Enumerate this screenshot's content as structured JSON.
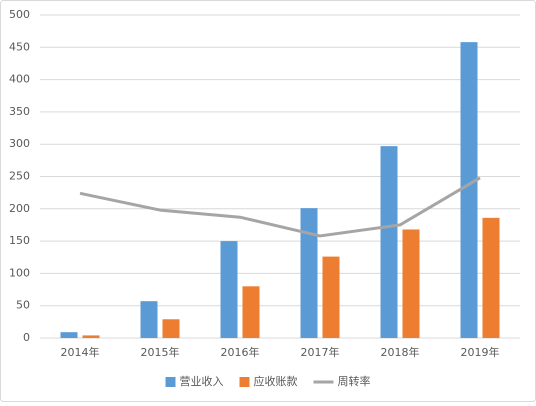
{
  "chart_data": {
    "type": "bar",
    "categories": [
      "2014年",
      "2015年",
      "2016年",
      "2017年",
      "2018年",
      "2019年"
    ],
    "series": [
      {
        "name": "营业收入",
        "color": "#5b9bd5",
        "values": [
          9,
          57,
          150,
          201,
          297,
          458
        ]
      },
      {
        "name": "应收账款",
        "color": "#ed7d31",
        "values": [
          4,
          29,
          80,
          126,
          168,
          186
        ]
      },
      {
        "name": "周转率",
        "type": "line",
        "color": "#a5a5a5",
        "values": [
          224,
          198,
          187,
          158,
          175,
          248
        ]
      }
    ],
    "ylim": [
      0,
      500
    ],
    "yticks": [
      0,
      50,
      100,
      150,
      200,
      250,
      300,
      350,
      400,
      450,
      500
    ],
    "grid": true,
    "legend": "bottom"
  }
}
